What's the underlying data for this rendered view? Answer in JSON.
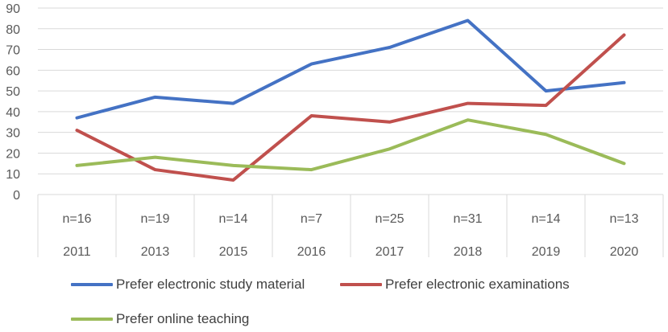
{
  "chart_data": {
    "type": "line",
    "categories": [
      {
        "n": "n=16",
        "year": "2011"
      },
      {
        "n": "n=19",
        "year": "2013"
      },
      {
        "n": "n=14",
        "year": "2015"
      },
      {
        "n": "n=7",
        "year": "2016"
      },
      {
        "n": "n=25",
        "year": "2017"
      },
      {
        "n": "n=31",
        "year": "2018"
      },
      {
        "n": "n=14",
        "year": "2019"
      },
      {
        "n": "n=13",
        "year": "2020"
      }
    ],
    "series": [
      {
        "name": "Prefer electronic study material",
        "color": "#4472C4",
        "values": [
          37,
          47,
          44,
          63,
          71,
          84,
          50,
          54
        ]
      },
      {
        "name": "Prefer electronic examinations",
        "color": "#C0504D",
        "values": [
          31,
          12,
          7,
          38,
          35,
          44,
          43,
          77
        ]
      },
      {
        "name": "Prefer online teaching",
        "color": "#9BBB59",
        "values": [
          14,
          18,
          14,
          12,
          22,
          36,
          29,
          15
        ]
      }
    ],
    "ylim": [
      0,
      90
    ],
    "yticks": [
      "0",
      "10",
      "20",
      "30",
      "40",
      "50",
      "60",
      "70",
      "80",
      "90"
    ],
    "grid": true,
    "legend_position": "bottom"
  }
}
